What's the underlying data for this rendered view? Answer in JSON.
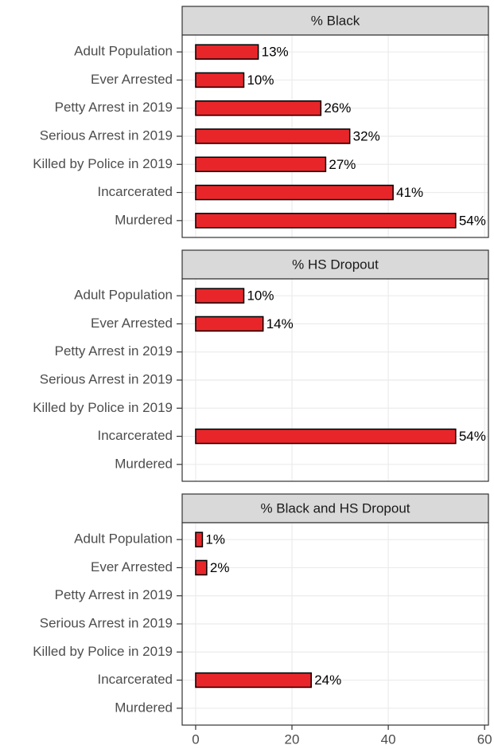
{
  "chart_data": [
    {
      "type": "bar",
      "orientation": "horizontal",
      "title": "% Black",
      "categories": [
        "Adult Population",
        "Ever Arrested",
        "Petty Arrest in 2019",
        "Serious Arrest in 2019",
        "Killed by Police in 2019",
        "Incarcerated",
        "Murdered"
      ],
      "values": [
        13,
        10,
        26,
        32,
        27,
        41,
        54
      ],
      "value_labels": [
        "13%",
        "10%",
        "26%",
        "32%",
        "27%",
        "41%",
        "54%"
      ],
      "color": "#e8262a",
      "xlim": [
        -2.8,
        60.8
      ],
      "xticks": [
        0,
        20,
        40,
        60
      ],
      "grid": true
    },
    {
      "type": "bar",
      "orientation": "horizontal",
      "title": "% HS Dropout",
      "categories": [
        "Adult Population",
        "Ever Arrested",
        "Petty Arrest in 2019",
        "Serious Arrest in 2019",
        "Killed by Police in 2019",
        "Incarcerated",
        "Murdered"
      ],
      "values": [
        10,
        14,
        null,
        null,
        null,
        54,
        null
      ],
      "value_labels": [
        "10%",
        "14%",
        null,
        null,
        null,
        "54%",
        null
      ],
      "color": "#e8262a",
      "xlim": [
        -2.8,
        60.8
      ],
      "xticks": [
        0,
        20,
        40,
        60
      ],
      "grid": true
    },
    {
      "type": "bar",
      "orientation": "horizontal",
      "title": "% Black and HS Dropout",
      "categories": [
        "Adult Population",
        "Ever Arrested",
        "Petty Arrest in 2019",
        "Serious Arrest in 2019",
        "Killed by Police in 2019",
        "Incarcerated",
        "Murdered"
      ],
      "values": [
        1.4,
        2.3,
        null,
        null,
        null,
        24,
        null
      ],
      "value_labels": [
        "1%",
        "2%",
        null,
        null,
        null,
        "24%",
        null
      ],
      "color": "#e8262a",
      "xlim": [
        -2.8,
        60.8
      ],
      "xticks": [
        0,
        20,
        40,
        60
      ],
      "grid": true
    }
  ]
}
